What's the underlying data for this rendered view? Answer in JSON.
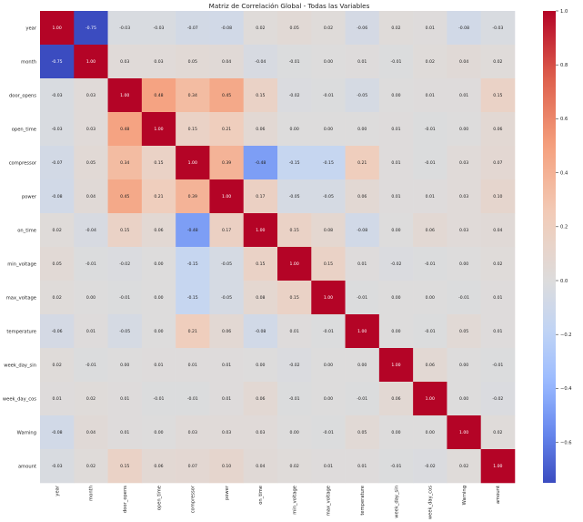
{
  "chart_data": {
    "type": "heatmap",
    "title": "Matriz de Correlación Global - Todas las Variables",
    "xlabel": "",
    "ylabel": "",
    "labels": [
      "year",
      "month",
      "door_opens",
      "open_time",
      "compressor",
      "power",
      "on_time",
      "min_voltage",
      "max_voltage",
      "temperature",
      "week_day_sin",
      "week_day_cos",
      "Warning",
      "amount"
    ],
    "matrix": [
      [
        1.0,
        -0.75,
        -0.03,
        -0.03,
        -0.07,
        -0.08,
        0.02,
        0.05,
        0.02,
        -0.06,
        0.02,
        0.01,
        -0.08,
        -0.03
      ],
      [
        -0.75,
        1.0,
        0.03,
        0.03,
        0.05,
        0.04,
        -0.04,
        -0.01,
        0.0,
        0.01,
        -0.01,
        0.02,
        0.04,
        0.02
      ],
      [
        -0.03,
        0.03,
        1.0,
        0.48,
        0.34,
        0.45,
        0.15,
        -0.02,
        -0.01,
        -0.05,
        0.0,
        0.01,
        0.01,
        0.15
      ],
      [
        -0.03,
        0.03,
        0.48,
        1.0,
        0.15,
        0.21,
        0.06,
        -0.0,
        -0.0,
        0.0,
        0.01,
        -0.01,
        0.0,
        0.06
      ],
      [
        -0.07,
        0.05,
        0.34,
        0.15,
        1.0,
        0.39,
        -0.48,
        -0.15,
        -0.15,
        0.21,
        0.01,
        -0.01,
        0.03,
        0.07
      ],
      [
        -0.08,
        0.04,
        0.45,
        0.21,
        0.39,
        1.0,
        0.17,
        -0.05,
        -0.05,
        0.06,
        0.01,
        0.01,
        0.03,
        0.1
      ],
      [
        0.02,
        -0.04,
        0.15,
        0.06,
        -0.48,
        0.17,
        1.0,
        0.15,
        0.08,
        -0.08,
        -0.0,
        0.06,
        0.03,
        0.04
      ],
      [
        0.05,
        -0.01,
        -0.02,
        -0.0,
        -0.15,
        -0.05,
        0.15,
        1.0,
        0.15,
        0.01,
        -0.02,
        -0.01,
        0.0,
        0.02
      ],
      [
        0.02,
        0.0,
        -0.01,
        -0.0,
        -0.15,
        -0.05,
        0.08,
        0.15,
        1.0,
        -0.01,
        0.0,
        -0.0,
        -0.01,
        0.01
      ],
      [
        -0.06,
        0.01,
        -0.05,
        0.0,
        0.21,
        0.06,
        -0.08,
        0.01,
        -0.01,
        1.0,
        -0.0,
        -0.01,
        0.05,
        0.01
      ],
      [
        0.02,
        -0.01,
        0.0,
        0.01,
        0.01,
        0.01,
        -0.0,
        -0.02,
        0.0,
        -0.0,
        1.0,
        0.06,
        0.0,
        -0.01
      ],
      [
        0.01,
        0.02,
        0.01,
        -0.01,
        -0.01,
        0.01,
        0.06,
        -0.01,
        -0.0,
        -0.01,
        0.06,
        1.0,
        -0.0,
        -0.02
      ],
      [
        -0.08,
        0.04,
        0.01,
        0.0,
        0.03,
        0.03,
        0.03,
        0.0,
        -0.01,
        0.05,
        0.0,
        -0.0,
        1.0,
        0.02
      ],
      [
        -0.03,
        0.02,
        0.15,
        0.06,
        0.07,
        0.1,
        0.04,
        0.02,
        0.01,
        0.01,
        -0.01,
        -0.02,
        0.02,
        1.0
      ]
    ],
    "colorbar": {
      "ticks": [
        1.0,
        0.8,
        0.6,
        0.4,
        0.2,
        0.0,
        -0.2,
        -0.4,
        -0.6
      ],
      "tick_labels": [
        "1.0",
        "0.8",
        "0.6",
        "0.4",
        "0.2",
        "0.0",
        "−0.2",
        "−0.4",
        "−0.6"
      ],
      "range": [
        -0.75,
        1.0
      ],
      "colormap": "coolwarm"
    },
    "colors": {
      "low": "#3b4cc0",
      "mid": "#dddcdc",
      "high": "#b40426",
      "background": "#ffffff",
      "text": "#222222"
    }
  }
}
